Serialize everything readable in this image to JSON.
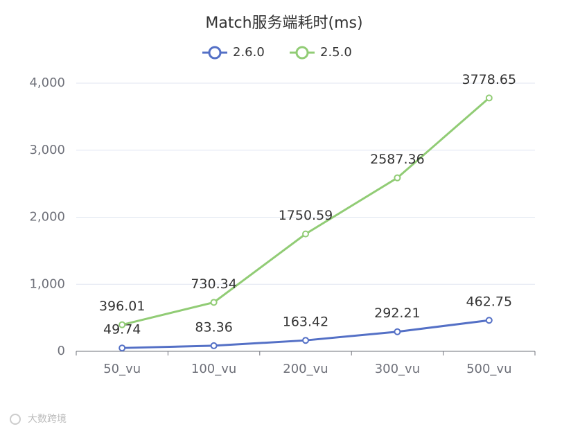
{
  "chart_data": {
    "type": "line",
    "title": "Match服务端耗时(ms)",
    "categories": [
      "50_vu",
      "100_vu",
      "200_vu",
      "300_vu",
      "500_vu"
    ],
    "series": [
      {
        "name": "2.6.0",
        "color": "#5470c6",
        "values": [
          49.74,
          83.36,
          163.42,
          292.21,
          462.75
        ]
      },
      {
        "name": "2.5.0",
        "color": "#91cc75",
        "values": [
          396.01,
          730.34,
          1750.59,
          2587.36,
          3778.65
        ]
      }
    ],
    "ylim": [
      0,
      4000
    ],
    "yticks": [
      0,
      {
        "value": 1000,
        "label": "1,000"
      },
      {
        "value": 2000,
        "label": "2,000"
      },
      {
        "value": 3000,
        "label": "3,000"
      },
      {
        "value": 4000,
        "label": "4,000"
      }
    ],
    "grid": true
  },
  "watermark": "大数跨境"
}
